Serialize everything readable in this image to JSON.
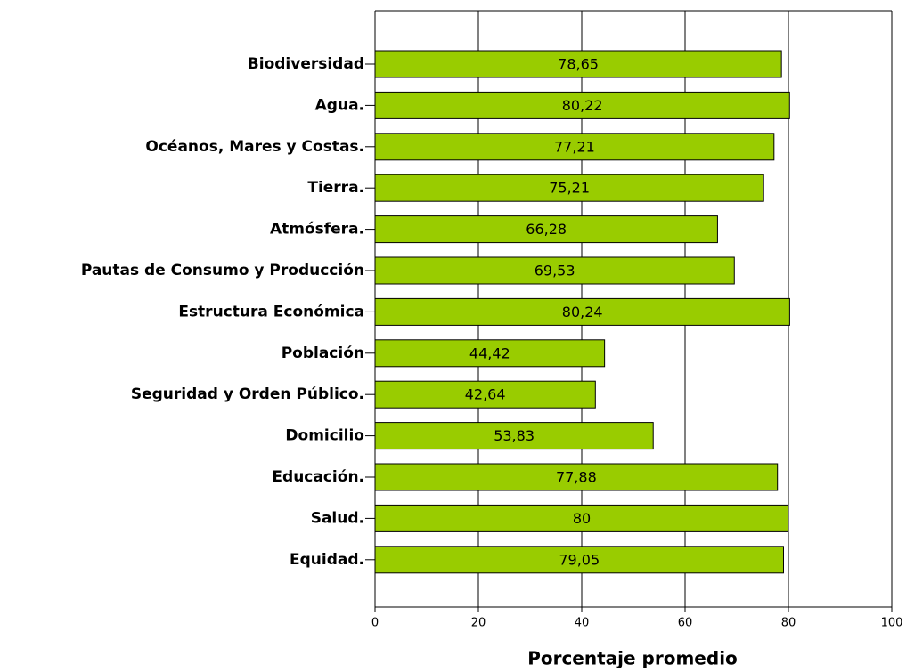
{
  "chart_data": {
    "type": "bar",
    "orientation": "horizontal",
    "x_label": "Porcentaje promedio",
    "categories": [
      "Biodiversidad",
      "Agua.",
      "Océanos, Mares y Costas.",
      "Tierra.",
      "Atmósfera.",
      "Pautas de Consumo y Producción",
      "Estructura Económica",
      "Población",
      "Seguridad y Orden Público.",
      "Domicilio",
      "Educación.",
      "Salud.",
      "Equidad."
    ],
    "values": [
      78.65,
      80.22,
      77.21,
      75.21,
      66.28,
      69.53,
      80.24,
      44.42,
      42.64,
      53.83,
      77.88,
      80,
      79.05
    ],
    "value_labels": [
      "78,65",
      "80,22",
      "77,21",
      "75,21",
      "66,28",
      "69,53",
      "80,24",
      "44,42",
      "42,64",
      "53,83",
      "77,88",
      "80",
      "79,05"
    ],
    "color": "#99cc00",
    "xlim": [
      0,
      100
    ],
    "xticks": [
      0,
      20,
      40,
      60,
      80,
      100
    ],
    "grid": true
  }
}
